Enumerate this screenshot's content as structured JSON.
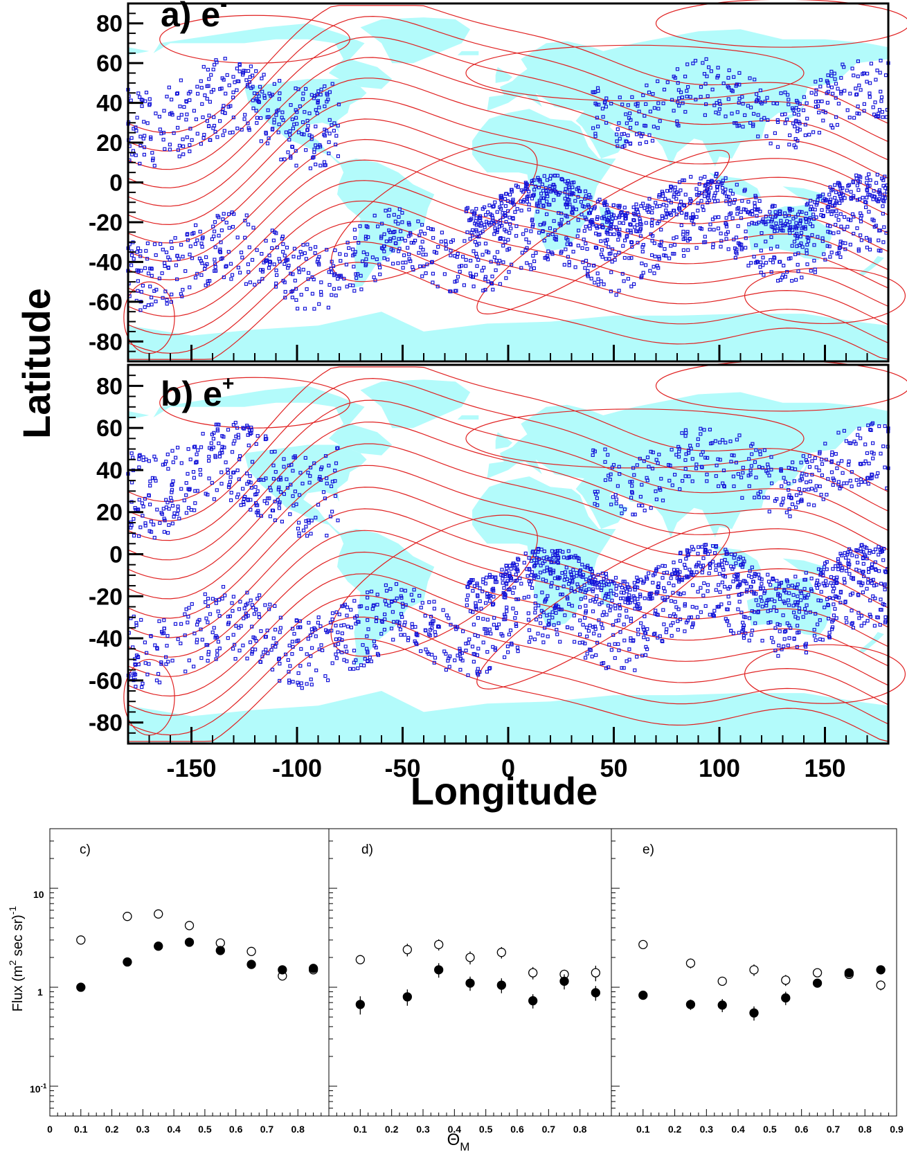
{
  "colors": {
    "land": "#b3fbfb",
    "contour": "#e02020",
    "tracks": "#1414d8",
    "frame": "#000000"
  },
  "maps": {
    "ylabel": "Latitude",
    "xlabel": "Longitude",
    "xticks": [
      "-150",
      "-100",
      "-50",
      "0",
      "50",
      "100",
      "150"
    ],
    "yticks": [
      "80",
      "60",
      "40",
      "20",
      "0",
      "-20",
      "-40",
      "-60",
      "-80"
    ],
    "panel_a": {
      "label": "a) e",
      "sup": "-"
    },
    "panel_b": {
      "label": "b) e",
      "sup": "+"
    }
  },
  "flux": {
    "ylabel_main": "Flux (m",
    "ylabel_sup2": "2",
    "ylabel_tail": " sec sr)",
    "ylabel_sup": "-1",
    "xlabel_main": "Θ",
    "xlabel_sub": "M",
    "ytick_10": "10",
    "ytick_1": "1",
    "ytick_01_base": "10",
    "ytick_01_exp": "-1",
    "panel_c": "c)",
    "panel_d": "d)",
    "panel_e": "e)",
    "xticks_c": [
      "0",
      "0.1",
      "0.2",
      "0.3",
      "0.4",
      "0.5",
      "0.6",
      "0.7",
      "0.8"
    ],
    "xticks_d": [
      "0.1",
      "0.2",
      "0.3",
      "0.4",
      "0.5",
      "0.6",
      "0.7",
      "0.8"
    ],
    "xticks_e": [
      "0.1",
      "0.2",
      "0.3",
      "0.4",
      "0.5",
      "0.6",
      "0.7",
      "0.8",
      "0.9"
    ]
  },
  "chart_data": [
    {
      "type": "scatter",
      "title": "a) e-",
      "xlabel": "Longitude",
      "ylabel": "Latitude",
      "xlim": [
        -180,
        180
      ],
      "ylim": [
        -90,
        90
      ],
      "note_series": "dense satellite-track points; land masses and geomagnetic contours in background"
    },
    {
      "type": "scatter",
      "title": "b) e+",
      "xlabel": "Longitude",
      "ylabel": "Latitude",
      "xlim": [
        -180,
        180
      ],
      "ylim": [
        -90,
        90
      ]
    },
    {
      "type": "scatter",
      "panel": "c)",
      "xlabel": "ΘM",
      "ylabel": "Flux (m2 sec sr)-1",
      "yscale": "log",
      "xlim": [
        0,
        0.9
      ],
      "ylim": [
        0.05,
        40
      ],
      "x": [
        0.1,
        0.25,
        0.35,
        0.45,
        0.55,
        0.65,
        0.75,
        0.85
      ],
      "series": [
        {
          "marker": "open",
          "values": [
            3.0,
            5.2,
            5.5,
            4.2,
            2.8,
            2.3,
            1.3,
            1.5
          ],
          "err": [
            0.15,
            0.25,
            0.3,
            0.3,
            0.2,
            0.2,
            0.12,
            0.12
          ]
        },
        {
          "marker": "filled",
          "values": [
            1.0,
            1.8,
            2.6,
            2.85,
            2.35,
            1.7,
            1.5,
            1.55
          ],
          "err": [
            0.06,
            0.12,
            0.15,
            0.2,
            0.2,
            0.15,
            0.12,
            0.12
          ]
        }
      ]
    },
    {
      "type": "scatter",
      "panel": "d)",
      "yscale": "log",
      "xlim": [
        0,
        0.9
      ],
      "ylim": [
        0.05,
        40
      ],
      "x": [
        0.1,
        0.25,
        0.35,
        0.45,
        0.55,
        0.65,
        0.75,
        0.85
      ],
      "series": [
        {
          "marker": "open",
          "values": [
            1.9,
            2.4,
            2.7,
            2.0,
            2.25,
            1.4,
            1.35,
            1.4
          ],
          "err": [
            0.15,
            0.35,
            0.35,
            0.3,
            0.3,
            0.2,
            0.15,
            0.25
          ]
        },
        {
          "marker": "filled",
          "values": [
            0.67,
            0.8,
            1.5,
            1.1,
            1.05,
            0.73,
            1.15,
            0.88
          ],
          "err": [
            0.14,
            0.15,
            0.25,
            0.18,
            0.18,
            0.12,
            0.2,
            0.15
          ]
        }
      ]
    },
    {
      "type": "scatter",
      "panel": "e)",
      "yscale": "log",
      "xlim": [
        0,
        0.9
      ],
      "ylim": [
        0.05,
        40
      ],
      "x": [
        0.1,
        0.25,
        0.35,
        0.45,
        0.55,
        0.65,
        0.75,
        0.85
      ],
      "series": [
        {
          "marker": "open",
          "values": [
            2.7,
            1.75,
            1.15,
            1.5,
            1.18,
            1.4,
            1.35,
            1.05
          ],
          "err": [
            0.15,
            0.2,
            0.1,
            0.2,
            0.15,
            0.1,
            0.1,
            0.12
          ]
        },
        {
          "marker": "filled",
          "values": [
            0.83,
            0.67,
            0.66,
            0.55,
            0.78,
            1.1,
            1.4,
            1.5
          ],
          "err": [
            0.08,
            0.08,
            0.1,
            0.09,
            0.12,
            0.1,
            0.1,
            0.1
          ]
        }
      ]
    }
  ]
}
